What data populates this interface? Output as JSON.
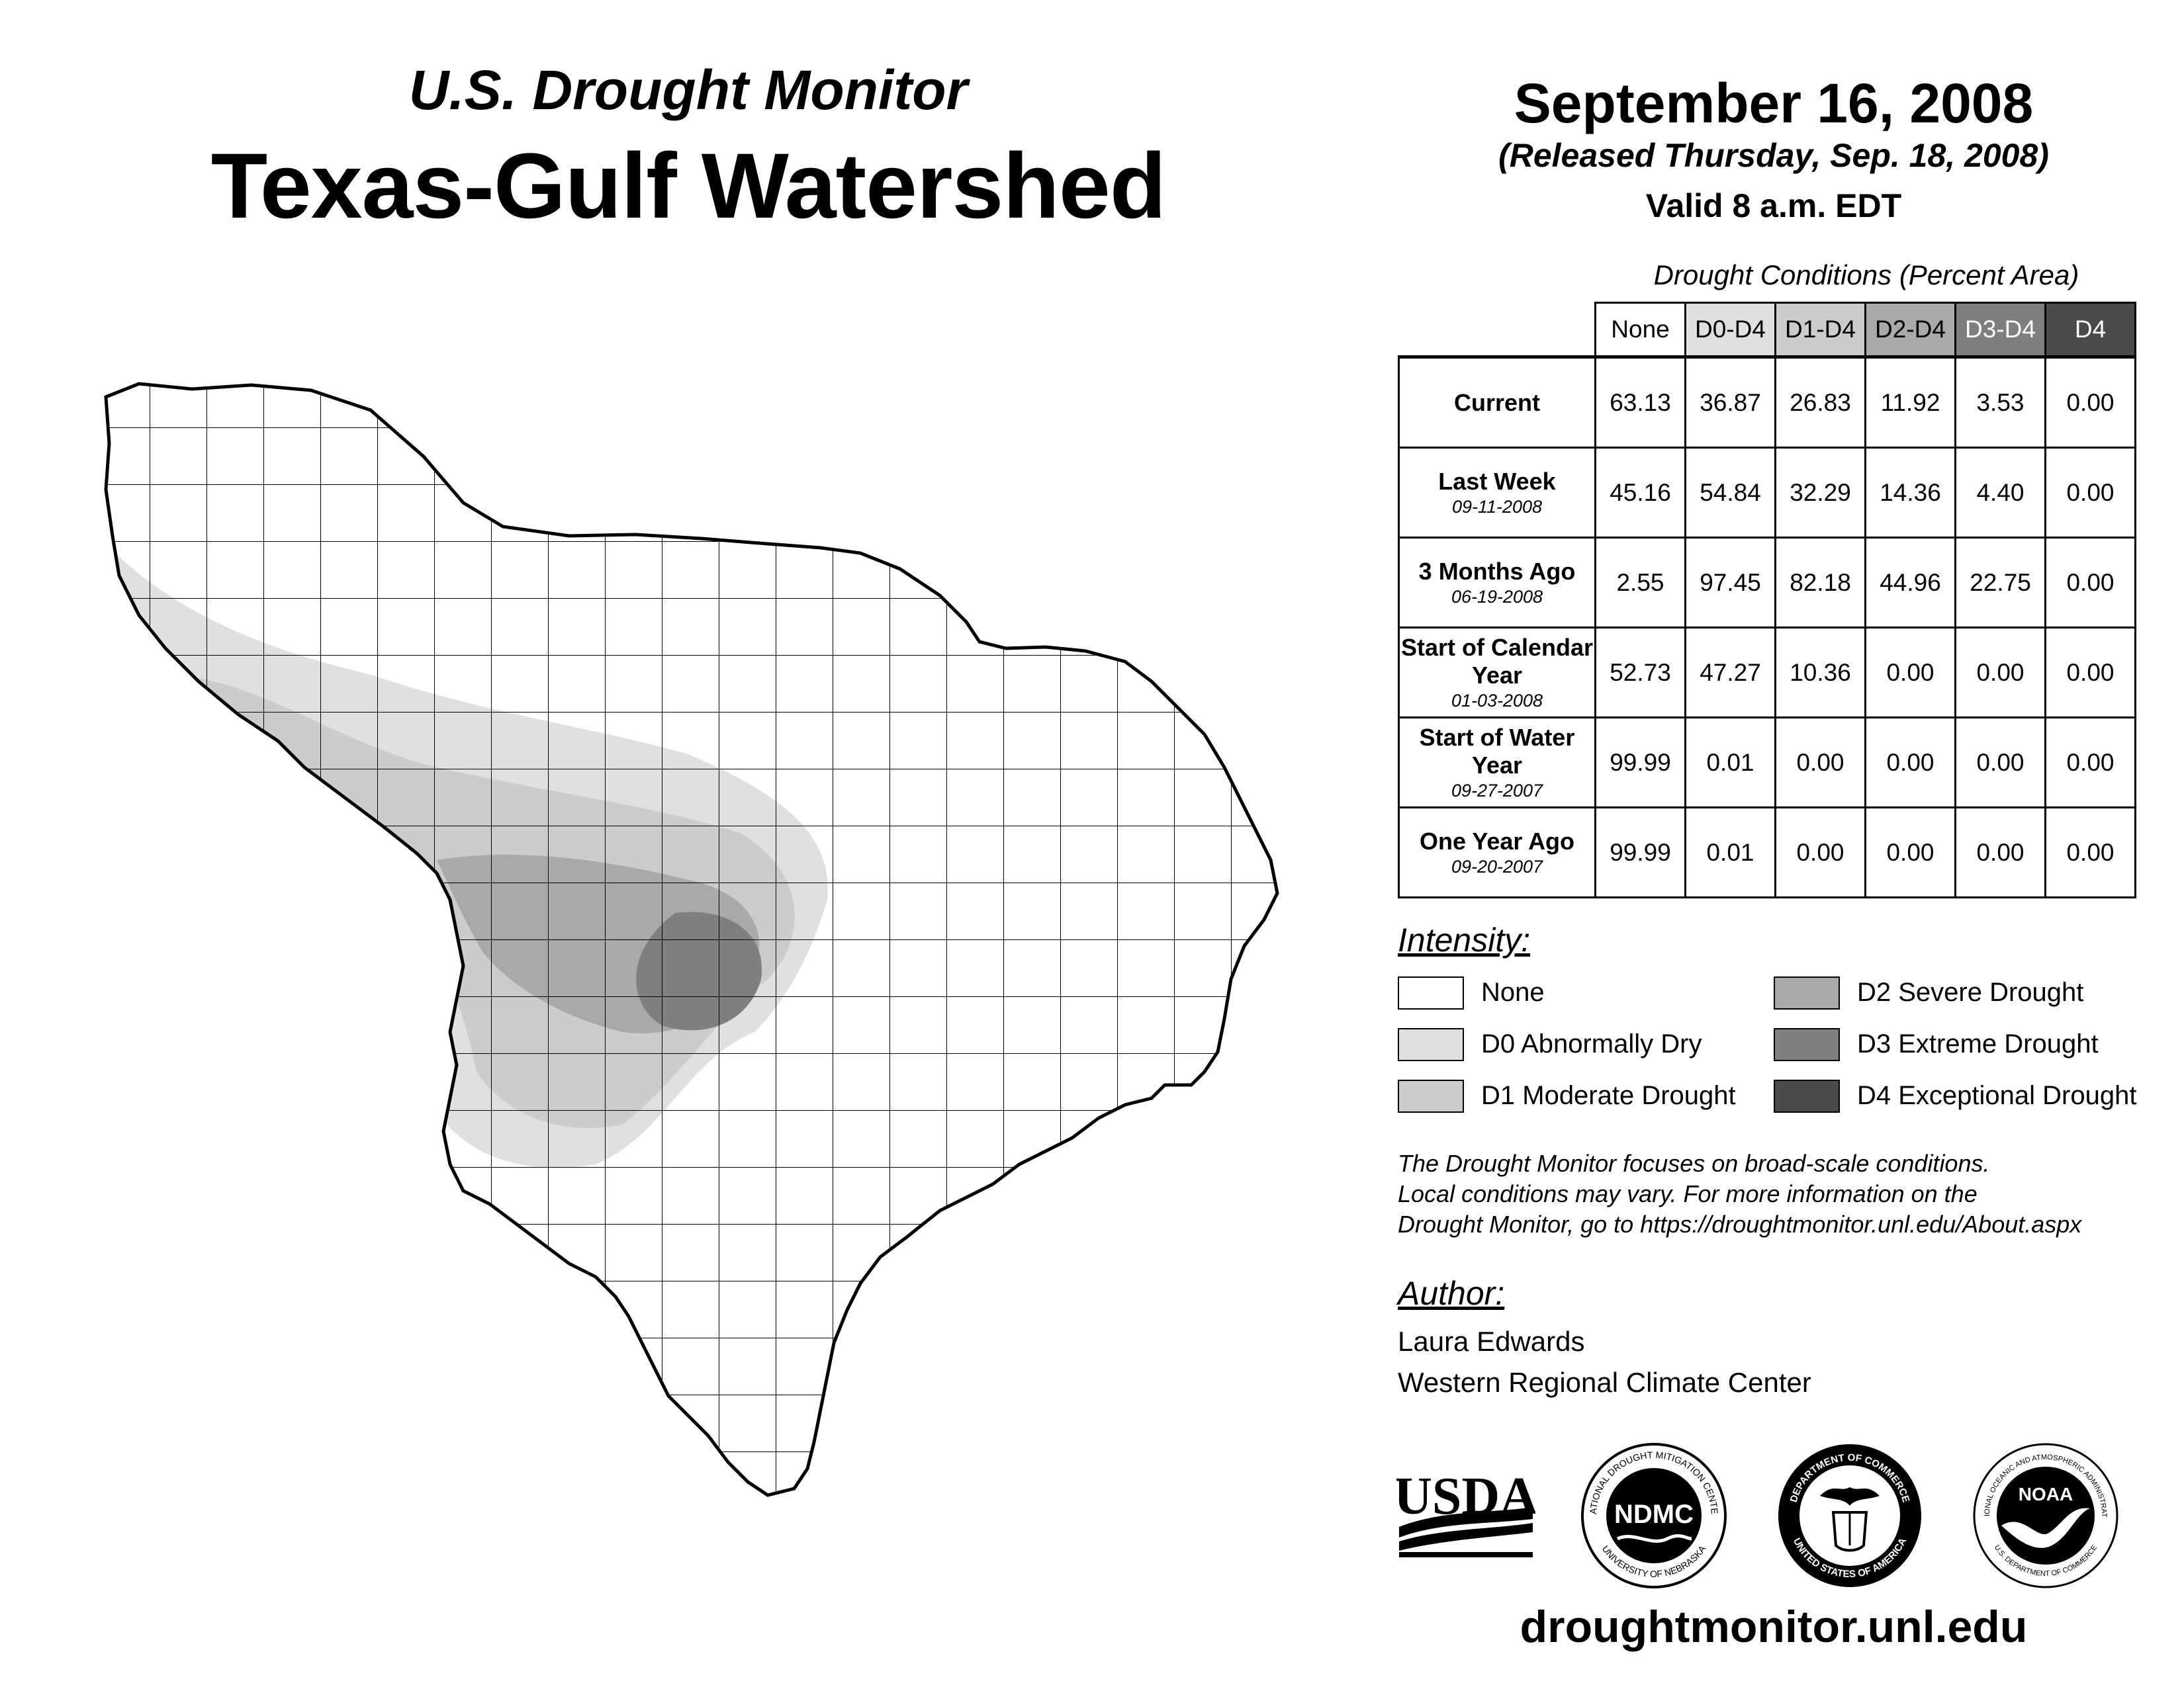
{
  "header": {
    "subtitle": "U.S. Drought Monitor",
    "title": "Texas-Gulf Watershed",
    "date": "September 16, 2008",
    "released": "(Released Thursday, Sep. 18, 2008)",
    "valid": "Valid 8 a.m. EDT"
  },
  "table": {
    "caption": "Drought Conditions (Percent Area)",
    "columns": [
      "None",
      "D0-D4",
      "D1-D4",
      "D2-D4",
      "D3-D4",
      "D4"
    ],
    "column_colors": [
      "#ffffff",
      "#e0e0e0",
      "#cccccc",
      "#a9a9a9",
      "#7f7f7f",
      "#4a4a4a"
    ],
    "rows": [
      {
        "label": "Current",
        "date": "",
        "values": [
          "63.13",
          "36.87",
          "26.83",
          "11.92",
          "3.53",
          "0.00"
        ]
      },
      {
        "label": "Last Week",
        "date": "09-11-2008",
        "values": [
          "45.16",
          "54.84",
          "32.29",
          "14.36",
          "4.40",
          "0.00"
        ]
      },
      {
        "label": "3 Months Ago",
        "date": "06-19-2008",
        "values": [
          "2.55",
          "97.45",
          "82.18",
          "44.96",
          "22.75",
          "0.00"
        ]
      },
      {
        "label": "Start of Calendar Year",
        "date": "01-03-2008",
        "values": [
          "52.73",
          "47.27",
          "10.36",
          "0.00",
          "0.00",
          "0.00"
        ]
      },
      {
        "label": "Start of Water Year",
        "date": "09-27-2007",
        "values": [
          "99.99",
          "0.01",
          "0.00",
          "0.00",
          "0.00",
          "0.00"
        ]
      },
      {
        "label": "One Year Ago",
        "date": "09-20-2007",
        "values": [
          "99.99",
          "0.01",
          "0.00",
          "0.00",
          "0.00",
          "0.00"
        ]
      }
    ]
  },
  "legend": {
    "title": "Intensity:",
    "items": [
      {
        "label": "None",
        "color": "#ffffff"
      },
      {
        "label": "D0 Abnormally Dry",
        "color": "#e0e0e0"
      },
      {
        "label": "D1 Moderate Drought",
        "color": "#cccccc"
      },
      {
        "label": "D2 Severe Drought",
        "color": "#a9a9a9"
      },
      {
        "label": "D3 Extreme Drought",
        "color": "#7f7f7f"
      },
      {
        "label": "D4 Exceptional Drought",
        "color": "#4a4a4a"
      }
    ]
  },
  "note": {
    "line1": "The Drought Monitor focuses on broad-scale conditions.",
    "line2": "Local conditions may vary. For more information on the",
    "line3": "Drought Monitor, go to https://droughtmonitor.unl.edu/About.aspx"
  },
  "author": {
    "title": "Author:",
    "name": "Laura Edwards",
    "org": "Western Regional Climate Center"
  },
  "logos": {
    "usda": "USDA",
    "ndmc": "NDMC",
    "ndmc_ring_top": "NATIONAL DROUGHT MITIGATION CENTER",
    "ndmc_ring_bottom": "UNIVERSITY OF NEBRASKA",
    "doc_ring_top": "DEPARTMENT OF COMMERCE",
    "doc_ring_bottom": "UNITED STATES OF AMERICA",
    "noaa": "NOAA",
    "noaa_ring_top": "NATIONAL OCEANIC AND ATMOSPHERIC ADMINISTRATION",
    "noaa_ring_bottom": "U.S. DEPARTMENT OF COMMERCE"
  },
  "footer": {
    "url": "droughtmonitor.unl.edu"
  }
}
